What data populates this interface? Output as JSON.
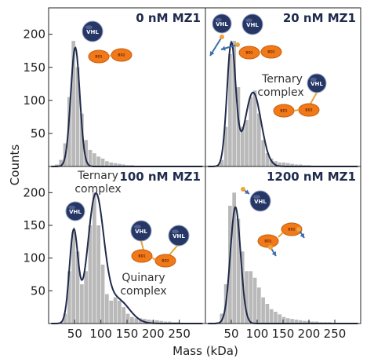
{
  "chart_data": {
    "type": "histogram",
    "xlabel": "Mass (kDa)",
    "ylabel": "Counts",
    "xlim": [
      0,
      300
    ],
    "ylim": [
      0,
      240
    ],
    "xticks": [
      50,
      100,
      150,
      200,
      250
    ],
    "yticks": [
      50,
      100,
      150,
      200
    ],
    "colors": {
      "bars": "#b9b9b9",
      "fit": "#1f2a4d",
      "vhl": "#263766",
      "ligand": "#f07a1a",
      "arrow": "#3c6ea8"
    },
    "panels": [
      {
        "title": "0 nM MZ1",
        "bin_centers": [
          8,
          16,
          24,
          32,
          40,
          48,
          56,
          64,
          72,
          80,
          88,
          96,
          104,
          112,
          120,
          128,
          136,
          144,
          152,
          160,
          168,
          176,
          184,
          192,
          200
        ],
        "counts": [
          0,
          3,
          10,
          35,
          105,
          190,
          150,
          80,
          40,
          25,
          20,
          15,
          12,
          8,
          6,
          5,
          4,
          3,
          2,
          2,
          1,
          1,
          1,
          1,
          0
        ],
        "fit_peaks": [
          {
            "mass": 51,
            "height": 180
          }
        ],
        "annotations": []
      },
      {
        "title": "20 nM MZ1",
        "bin_centers": [
          24,
          32,
          40,
          48,
          56,
          64,
          72,
          80,
          88,
          96,
          104,
          112,
          120,
          128,
          136,
          144,
          152,
          160,
          168,
          176,
          184,
          192,
          200,
          208,
          216,
          224,
          232,
          240
        ],
        "counts": [
          2,
          10,
          60,
          170,
          190,
          120,
          60,
          70,
          105,
          115,
          80,
          40,
          20,
          12,
          8,
          6,
          6,
          5,
          4,
          3,
          3,
          2,
          2,
          1,
          1,
          1,
          1,
          1
        ],
        "fit_peaks": [
          {
            "mass": 50,
            "height": 185
          },
          {
            "mass": 92,
            "height": 112
          }
        ],
        "annotations": [
          "Ternary",
          "complex"
        ]
      },
      {
        "title": "100 nM MZ1",
        "bin_centers": [
          24,
          32,
          40,
          48,
          56,
          64,
          72,
          80,
          88,
          96,
          104,
          112,
          120,
          128,
          136,
          144,
          152,
          160,
          168,
          176,
          184,
          192,
          200,
          208,
          216,
          224,
          232,
          240,
          248,
          256
        ],
        "counts": [
          2,
          15,
          80,
          140,
          110,
          60,
          80,
          150,
          200,
          150,
          90,
          45,
          35,
          40,
          35,
          25,
          15,
          10,
          8,
          8,
          7,
          6,
          5,
          5,
          4,
          3,
          3,
          2,
          2,
          1
        ],
        "fit_peaks": [
          {
            "mass": 48,
            "height": 140
          },
          {
            "mass": 90,
            "height": 193
          },
          {
            "mass": 132,
            "height": 36
          }
        ],
        "annotations": [
          "Ternary",
          "complex",
          "Quinary",
          "complex"
        ]
      },
      {
        "title": "1200 nM MZ1",
        "bin_centers": [
          24,
          32,
          40,
          48,
          56,
          64,
          72,
          80,
          88,
          96,
          104,
          112,
          120,
          128,
          136,
          144,
          152,
          160,
          168,
          176,
          184,
          192,
          200,
          208,
          216,
          224,
          232,
          240,
          248,
          256
        ],
        "counts": [
          2,
          15,
          60,
          180,
          200,
          160,
          110,
          80,
          80,
          70,
          55,
          40,
          30,
          22,
          18,
          14,
          10,
          8,
          7,
          6,
          5,
          4,
          4,
          3,
          3,
          2,
          2,
          2,
          1,
          1
        ],
        "fit_peaks": [
          {
            "mass": 58,
            "height": 178
          }
        ],
        "annotations": []
      }
    ]
  },
  "icons": {
    "vhl_label": "VHL",
    "bd_label_1": "BD1",
    "bd_label_2": "BD2"
  }
}
